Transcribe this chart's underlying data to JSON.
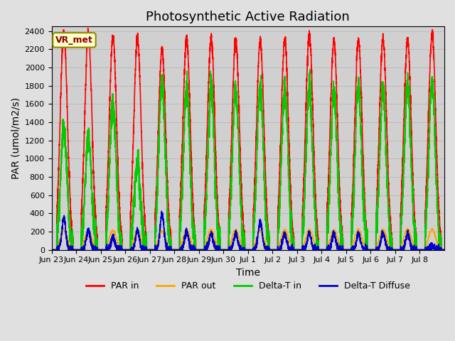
{
  "title": "Photosynthetic Active Radiation",
  "xlabel": "Time",
  "ylabel": "PAR (umol/m2/s)",
  "ylim": [
    0,
    2450
  ],
  "fig_bg_color": "#e0e0e0",
  "plot_bg_color": "#d0d0d0",
  "legend_label": "VR_met",
  "series": {
    "par_in": {
      "color": "#ff0000",
      "label": "PAR in",
      "linewidth": 1.2
    },
    "par_out": {
      "color": "#ffa500",
      "label": "PAR out",
      "linewidth": 1.2
    },
    "delta_t_in": {
      "color": "#00cc00",
      "label": "Delta-T in",
      "linewidth": 1.2
    },
    "delta_t_diffuse": {
      "color": "#0000cc",
      "label": "Delta-T Diffuse",
      "linewidth": 1.2
    }
  },
  "xtick_labels": [
    "Jun 23",
    "Jun 24",
    "Jun 25",
    "Jun 26",
    "Jun 27",
    "Jun 28",
    "Jun 29",
    "Jun 30",
    "Jul 1",
    "Jul 2",
    "Jul 3",
    "Jul 4",
    "Jul 5",
    "Jul 6",
    "Jul 7",
    "Jul 8"
  ],
  "n_days": 16,
  "pts_per_day": 288,
  "yticks": [
    0,
    200,
    400,
    600,
    800,
    1000,
    1200,
    1400,
    1600,
    1800,
    2000,
    2200,
    2400
  ],
  "grid_color": "#bbbbbb",
  "title_fontsize": 13,
  "axis_fontsize": 10,
  "tick_fontsize": 8,
  "par_in_peaks": [
    2380,
    2370,
    2340,
    2320,
    2200,
    2320,
    2320,
    2310,
    2300,
    2310,
    2360,
    2300,
    2300,
    2310,
    2310,
    2380
  ],
  "par_out_peaks": [
    220,
    210,
    210,
    210,
    205,
    215,
    220,
    215,
    210,
    220,
    220,
    215,
    220,
    220,
    225,
    225
  ],
  "delta_t_peaks": [
    1350,
    1230,
    1620,
    950,
    1850,
    1780,
    1780,
    1760,
    1780,
    1780,
    1760,
    1730,
    1790,
    1750,
    1810,
    1820
  ],
  "delta_t_diff_peaks": [
    340,
    210,
    130,
    210,
    395,
    195,
    175,
    175,
    310,
    175,
    180,
    170,
    175,
    175,
    175,
    40
  ]
}
